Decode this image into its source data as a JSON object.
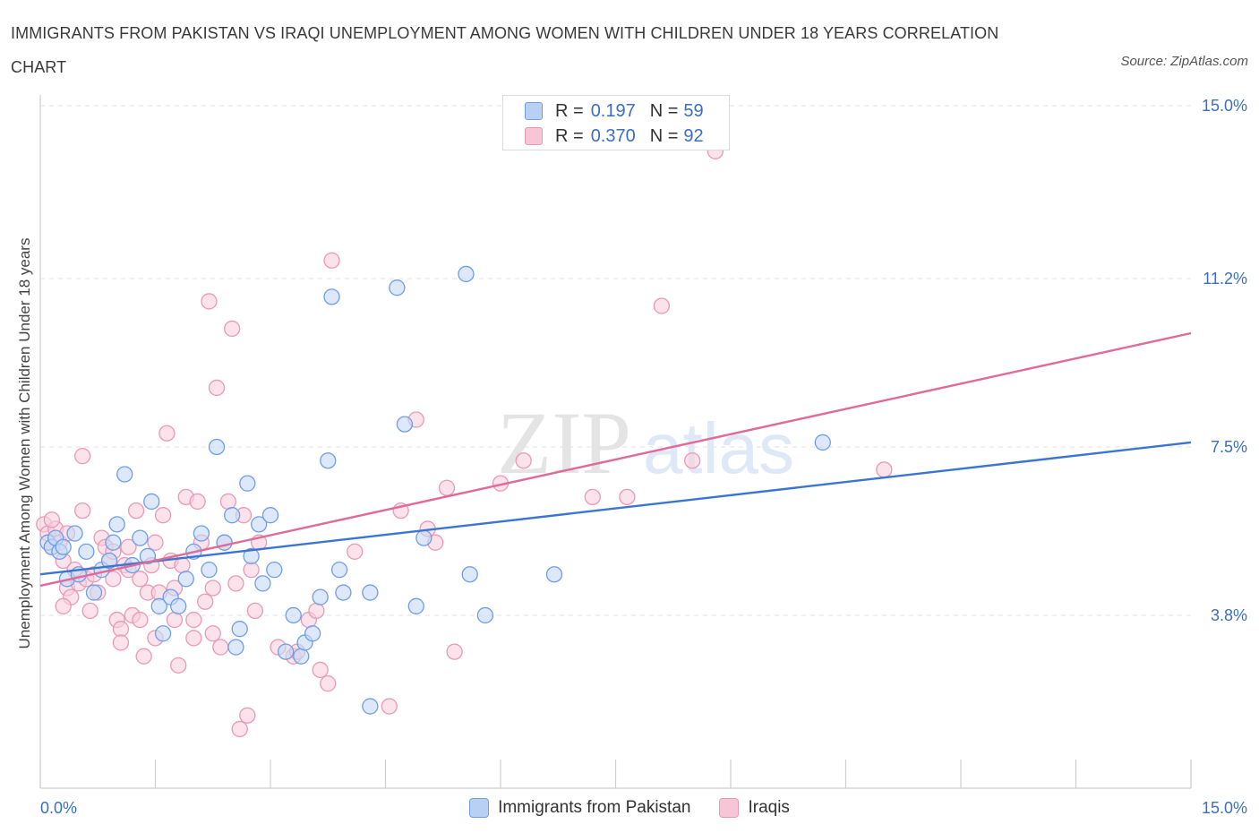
{
  "title": "IMMIGRANTS FROM PAKISTAN VS IRAQI UNEMPLOYMENT AMONG WOMEN WITH CHILDREN UNDER 18 YEARS CORRELATION CHART",
  "source": "Source: ZipAtlas.com",
  "watermark": {
    "zip": "ZIP",
    "atlas": "atlas"
  },
  "legend_top": [
    {
      "r_label": "R =",
      "r_value": "0.197",
      "n_label": "N =",
      "n_value": "59",
      "color": "#6f9ee8",
      "fill": "#b9d0f5"
    },
    {
      "r_label": "R =",
      "r_value": "0.370",
      "n_label": "N =",
      "n_value": "92",
      "color": "#e99ab5",
      "fill": "#f7c6d6"
    }
  ],
  "legend_bottom": [
    {
      "label": "Immigrants from Pakistan",
      "color": "#6f9ee8",
      "fill": "#b9d0f5"
    },
    {
      "label": "Iraqis",
      "color": "#e99ab5",
      "fill": "#f7c6d6"
    }
  ],
  "colors": {
    "pakistan_line": "#3a76d0",
    "iraqi_line": "#e06a98",
    "pakistan_point_stroke": "#6f9ee8",
    "pakistan_point_fill": "#c7dbf7",
    "iraqi_point_stroke": "#e99ab5",
    "iraqi_point_fill": "#f8cfdd",
    "tick_label": "#3a6fc4",
    "grid": "#e2e2e2"
  },
  "chart_data": {
    "type": "scatter",
    "title": "IMMIGRANTS FROM PAKISTAN VS IRAQI UNEMPLOYMENT AMONG WOMEN WITH CHILDREN UNDER 18 YEARS CORRELATION CHART",
    "xlabel": "",
    "ylabel": "Unemployment Among Women with Children Under 18 years",
    "xlim": [
      0,
      15
    ],
    "ylim": [
      0,
      15
    ],
    "x_tick_labels": [
      "0.0%",
      "15.0%"
    ],
    "y_tick_labels": [
      "3.8%",
      "7.5%",
      "11.2%",
      "15.0%"
    ],
    "y_tick_values": [
      3.8,
      7.5,
      11.2,
      15.0
    ],
    "grid": true,
    "legend_position": "top-center",
    "series": [
      {
        "name": "Immigrants from Pakistan",
        "R": 0.197,
        "N": 59,
        "trend": {
          "x": [
            0,
            15
          ],
          "y": [
            4.7,
            7.6
          ]
        },
        "points": [
          [
            0.1,
            5.4
          ],
          [
            0.15,
            5.3
          ],
          [
            0.2,
            5.5
          ],
          [
            0.25,
            5.2
          ],
          [
            0.3,
            5.3
          ],
          [
            0.35,
            4.6
          ],
          [
            0.45,
            5.6
          ],
          [
            0.5,
            4.7
          ],
          [
            0.6,
            5.2
          ],
          [
            0.7,
            4.3
          ],
          [
            0.8,
            4.8
          ],
          [
            0.9,
            5.0
          ],
          [
            0.95,
            5.4
          ],
          [
            1.0,
            5.8
          ],
          [
            1.1,
            6.9
          ],
          [
            1.2,
            4.9
          ],
          [
            1.3,
            5.5
          ],
          [
            1.4,
            5.1
          ],
          [
            1.45,
            6.3
          ],
          [
            1.55,
            4.0
          ],
          [
            1.6,
            3.4
          ],
          [
            1.7,
            4.2
          ],
          [
            1.8,
            4.0
          ],
          [
            1.9,
            4.6
          ],
          [
            2.0,
            5.2
          ],
          [
            2.1,
            5.6
          ],
          [
            2.2,
            4.8
          ],
          [
            2.3,
            7.5
          ],
          [
            2.4,
            5.4
          ],
          [
            2.5,
            6.0
          ],
          [
            2.55,
            3.1
          ],
          [
            2.6,
            3.5
          ],
          [
            2.7,
            6.7
          ],
          [
            2.75,
            5.1
          ],
          [
            2.85,
            5.8
          ],
          [
            2.9,
            4.5
          ],
          [
            3.0,
            6.0
          ],
          [
            3.05,
            4.8
          ],
          [
            3.2,
            3.0
          ],
          [
            3.3,
            3.8
          ],
          [
            3.4,
            2.9
          ],
          [
            3.45,
            3.2
          ],
          [
            3.55,
            3.4
          ],
          [
            3.65,
            4.2
          ],
          [
            3.75,
            7.2
          ],
          [
            3.8,
            10.8
          ],
          [
            3.9,
            4.8
          ],
          [
            3.95,
            4.3
          ],
          [
            4.3,
            4.3
          ],
          [
            4.3,
            1.8
          ],
          [
            4.65,
            11.0
          ],
          [
            4.75,
            8.0
          ],
          [
            4.9,
            4.0
          ],
          [
            5.0,
            5.5
          ],
          [
            5.55,
            11.3
          ],
          [
            5.6,
            4.7
          ],
          [
            5.8,
            3.8
          ],
          [
            6.7,
            4.7
          ],
          [
            10.2,
            7.6
          ]
        ]
      },
      {
        "name": "Iraqis",
        "R": 0.37,
        "N": 92,
        "trend": {
          "x": [
            0,
            15
          ],
          "y": [
            4.45,
            10.0
          ]
        },
        "points": [
          [
            0.05,
            5.8
          ],
          [
            0.1,
            5.6
          ],
          [
            0.15,
            5.3
          ],
          [
            0.2,
            5.7
          ],
          [
            0.25,
            5.4
          ],
          [
            0.3,
            5.0
          ],
          [
            0.35,
            4.4
          ],
          [
            0.4,
            4.2
          ],
          [
            0.45,
            4.8
          ],
          [
            0.5,
            4.5
          ],
          [
            0.55,
            7.3
          ],
          [
            0.6,
            4.6
          ],
          [
            0.65,
            3.9
          ],
          [
            0.7,
            4.7
          ],
          [
            0.75,
            4.3
          ],
          [
            0.8,
            5.5
          ],
          [
            0.85,
            5.3
          ],
          [
            0.9,
            5.0
          ],
          [
            0.95,
            4.6
          ],
          [
            1.0,
            3.7
          ],
          [
            1.05,
            3.5
          ],
          [
            1.1,
            4.9
          ],
          [
            1.15,
            5.3
          ],
          [
            1.2,
            3.8
          ],
          [
            1.25,
            6.1
          ],
          [
            1.3,
            3.7
          ],
          [
            1.35,
            2.9
          ],
          [
            1.4,
            4.3
          ],
          [
            1.45,
            4.9
          ],
          [
            1.5,
            5.4
          ],
          [
            1.55,
            4.3
          ],
          [
            1.6,
            6.0
          ],
          [
            1.65,
            7.8
          ],
          [
            1.7,
            5.0
          ],
          [
            1.75,
            3.7
          ],
          [
            1.8,
            2.7
          ],
          [
            1.85,
            4.9
          ],
          [
            1.9,
            6.4
          ],
          [
            2.0,
            3.3
          ],
          [
            2.05,
            6.3
          ],
          [
            2.1,
            5.4
          ],
          [
            2.15,
            4.1
          ],
          [
            2.2,
            10.7
          ],
          [
            2.25,
            3.4
          ],
          [
            2.3,
            8.8
          ],
          [
            2.35,
            3.1
          ],
          [
            2.4,
            5.4
          ],
          [
            2.45,
            6.3
          ],
          [
            2.5,
            10.1
          ],
          [
            2.55,
            4.5
          ],
          [
            2.6,
            1.3
          ],
          [
            2.65,
            6.0
          ],
          [
            2.7,
            1.6
          ],
          [
            2.75,
            4.8
          ],
          [
            2.85,
            5.4
          ],
          [
            3.1,
            3.1
          ],
          [
            3.3,
            2.9
          ],
          [
            3.35,
            3.0
          ],
          [
            3.5,
            3.7
          ],
          [
            3.6,
            3.9
          ],
          [
            3.65,
            2.6
          ],
          [
            3.75,
            2.3
          ],
          [
            3.8,
            11.6
          ],
          [
            4.1,
            5.2
          ],
          [
            4.55,
            1.8
          ],
          [
            4.7,
            6.1
          ],
          [
            4.9,
            8.1
          ],
          [
            5.05,
            5.7
          ],
          [
            5.15,
            5.4
          ],
          [
            5.3,
            6.6
          ],
          [
            5.4,
            3.0
          ],
          [
            6.0,
            6.7
          ],
          [
            6.3,
            7.2
          ],
          [
            7.2,
            6.4
          ],
          [
            7.65,
            6.4
          ],
          [
            8.1,
            10.6
          ],
          [
            8.5,
            7.2
          ],
          [
            8.8,
            14.0
          ],
          [
            11.0,
            7.0
          ],
          [
            0.3,
            4.0
          ],
          [
            0.95,
            5.2
          ],
          [
            1.15,
            4.8
          ],
          [
            1.5,
            3.3
          ],
          [
            1.75,
            4.4
          ],
          [
            2.0,
            3.7
          ],
          [
            2.25,
            4.4
          ],
          [
            0.15,
            5.9
          ],
          [
            0.55,
            6.1
          ],
          [
            0.35,
            5.6
          ],
          [
            1.05,
            3.2
          ],
          [
            2.8,
            3.9
          ],
          [
            1.3,
            4.6
          ]
        ]
      }
    ]
  }
}
